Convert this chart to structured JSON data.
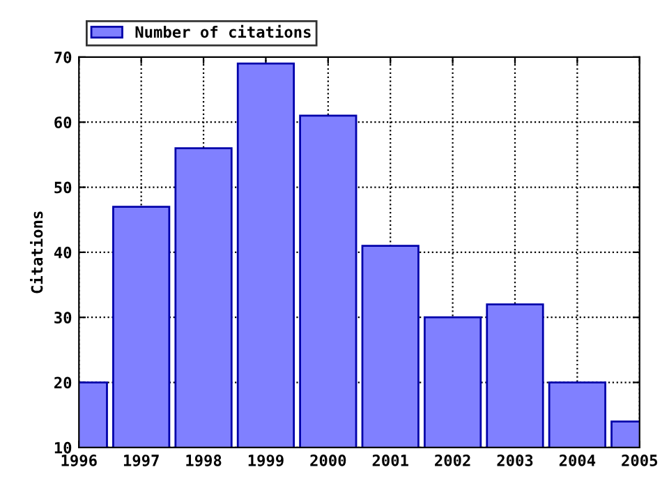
{
  "chart_data": {
    "type": "bar",
    "ylabel": "Citations",
    "x": [
      1996,
      1997,
      1998,
      1999,
      2000,
      2001,
      2002,
      2003,
      2004,
      2005
    ],
    "series": [
      {
        "name": "Number of citations",
        "color": "#8080ff",
        "values": [
          20,
          47,
          56,
          69,
          61,
          41,
          30,
          32,
          20,
          14
        ]
      }
    ],
    "xlim": [
      1996,
      2005
    ],
    "xticks": [
      1996,
      1997,
      1998,
      1999,
      2000,
      2001,
      2002,
      2003,
      2004,
      2005
    ],
    "ylim": [
      10,
      70
    ],
    "yticks": [
      10,
      20,
      30,
      40,
      50,
      60,
      70
    ],
    "grid": true,
    "legend": "top left"
  }
}
